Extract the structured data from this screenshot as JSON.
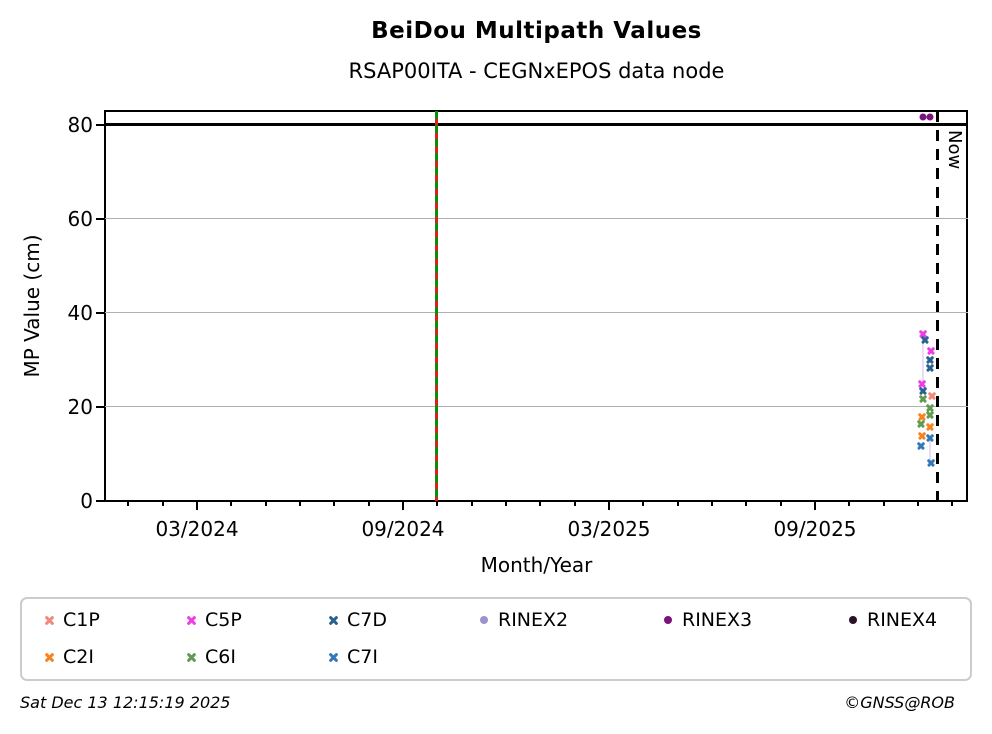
{
  "header": {
    "title": "BeiDou Multipath Values",
    "subtitle": "RSAP00ITA - CEGNxEPOS data node"
  },
  "footer": {
    "timestamp": "Sat Dec 13 12:15:19 2025",
    "credit": "©GNSS@ROB"
  },
  "chart_data": {
    "type": "scatter",
    "title": "BeiDou Multipath Values",
    "subtitle": "RSAP00ITA - CEGNxEPOS data node",
    "xlabel": "Month/Year",
    "ylabel": "MP Value (cm)",
    "x_unit": "months since 2024-01-01",
    "xlim": [
      -0.7,
      24.46
    ],
    "ylim": [
      0,
      80
    ],
    "yticks": [
      0,
      20,
      40,
      60,
      80
    ],
    "grid_y": [
      20,
      40,
      60
    ],
    "threshold_line_y": 80,
    "xticks": [
      {
        "t": 2,
        "label": "03/2024"
      },
      {
        "t": 8,
        "label": "09/2024"
      },
      {
        "t": 14,
        "label": "03/2025"
      },
      {
        "t": 20,
        "label": "09/2025"
      }
    ],
    "minor_tick_months": [
      0,
      1,
      2,
      3,
      4,
      5,
      6,
      7,
      8,
      9,
      10,
      11,
      12,
      13,
      14,
      15,
      16,
      17,
      18,
      19,
      20,
      21,
      22,
      23,
      24
    ],
    "annotations": {
      "event_line": {
        "t": 8.99,
        "style": "green-red-dashed"
      },
      "now_line": {
        "t": 23.58,
        "label": "Now",
        "style": "black-dashed"
      }
    },
    "connectors": [
      {
        "t": 23.16,
        "v_from": 34.0,
        "v_to": 24.9,
        "color": "#cdb9eb"
      },
      {
        "t": 23.36,
        "v_from": 13.5,
        "v_to": 8.1,
        "color": "#cdb9eb"
      }
    ],
    "series": [
      {
        "name": "C1P",
        "color": "#f4867c",
        "marker": "x",
        "points": [
          {
            "t": 23.4,
            "v": 22.4
          }
        ]
      },
      {
        "name": "C2I",
        "color": "#f8821f",
        "marker": "x",
        "points": [
          {
            "t": 23.12,
            "v": 17.8
          },
          {
            "t": 23.12,
            "v": 13.9
          },
          {
            "t": 23.35,
            "v": 15.8
          }
        ]
      },
      {
        "name": "C5P",
        "color": "#ee3ce6",
        "marker": "x",
        "points": [
          {
            "t": 23.16,
            "v": 35.5
          },
          {
            "t": 23.13,
            "v": 24.9
          },
          {
            "t": 23.37,
            "v": 31.9
          }
        ]
      },
      {
        "name": "C6I",
        "color": "#5f9b51",
        "marker": "x",
        "points": [
          {
            "t": 23.16,
            "v": 21.7
          },
          {
            "t": 23.1,
            "v": 16.4
          },
          {
            "t": 23.35,
            "v": 19.7
          },
          {
            "t": 23.34,
            "v": 18.3
          }
        ]
      },
      {
        "name": "C7D",
        "color": "#29618f",
        "marker": "x",
        "points": [
          {
            "t": 23.19,
            "v": 34.2
          },
          {
            "t": 23.15,
            "v": 23.4
          },
          {
            "t": 23.36,
            "v": 30.1
          },
          {
            "t": 23.34,
            "v": 28.2
          }
        ]
      },
      {
        "name": "C7I",
        "color": "#3378b8",
        "marker": "x",
        "points": [
          {
            "t": 23.09,
            "v": 11.7
          },
          {
            "t": 23.35,
            "v": 13.5
          },
          {
            "t": 23.37,
            "v": 8.1
          }
        ]
      },
      {
        "name": "RINEX2",
        "color": "#9b94cb",
        "marker": "circle",
        "points": []
      },
      {
        "name": "RINEX3",
        "color": "#7e117e",
        "marker": "circle",
        "points": [
          {
            "t": 23.15,
            "v": 81.5
          },
          {
            "t": 23.36,
            "v": 81.5
          }
        ]
      },
      {
        "name": "RINEX4",
        "color": "#2a1128",
        "marker": "circle",
        "points": []
      }
    ],
    "legend_position": "bottom"
  },
  "legend": {
    "columns": [
      [
        "C1P",
        "C2I"
      ],
      [
        "C5P",
        "C6I"
      ],
      [
        "C7D",
        "C7I"
      ],
      [
        "RINEX2"
      ],
      [
        "RINEX3"
      ],
      [
        "RINEX4"
      ]
    ]
  },
  "colors": {
    "grid": "#b0b0b0",
    "axis": "#000000",
    "event_green": "#0a9006",
    "event_red": "#e41a1c",
    "now_line": "#000000"
  }
}
